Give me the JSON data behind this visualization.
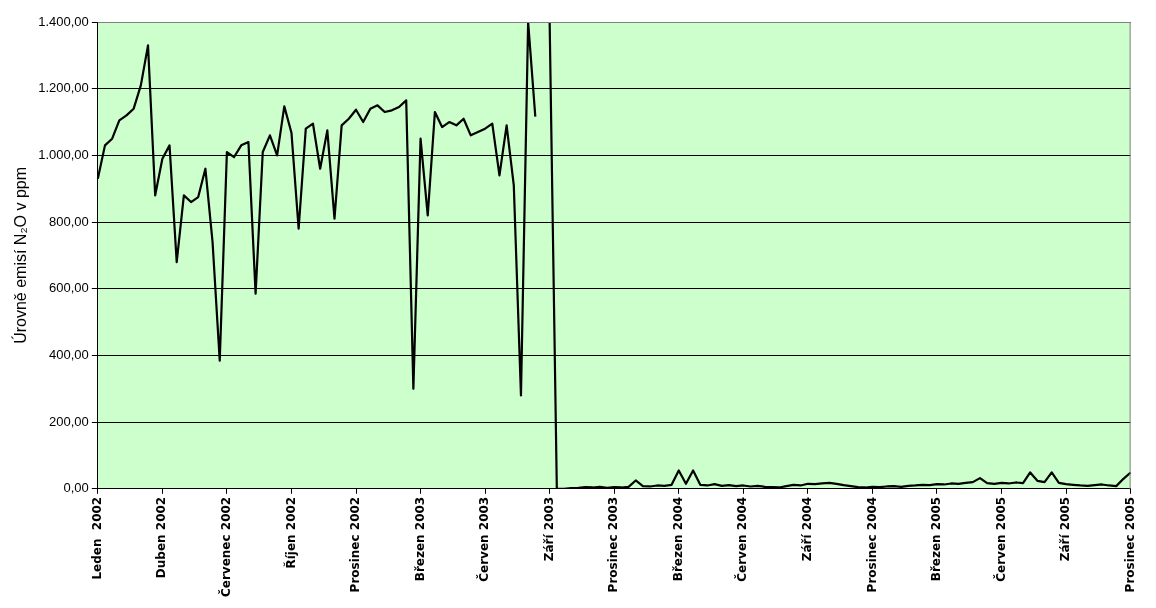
{
  "chart_data": {
    "type": "line",
    "ylabel": "Úrovně emisí N₂O v ppm",
    "categories": [
      "Leden  2002",
      null,
      null,
      null,
      null,
      null,
      null,
      null,
      null,
      "Duben 2002",
      null,
      null,
      null,
      null,
      null,
      null,
      null,
      null,
      "Červenec 2002",
      null,
      null,
      null,
      null,
      null,
      null,
      null,
      null,
      "Říjen 2002",
      null,
      null,
      null,
      null,
      null,
      null,
      null,
      null,
      "Prosinec 2002",
      null,
      null,
      null,
      null,
      null,
      null,
      null,
      null,
      "Březen 2003",
      null,
      null,
      null,
      null,
      null,
      null,
      null,
      null,
      "Červen 2003",
      null,
      null,
      null,
      null,
      null,
      null,
      null,
      null,
      "Září 2003",
      null,
      null,
      null,
      null,
      null,
      null,
      null,
      null,
      "Prosinec 2003",
      null,
      null,
      null,
      null,
      null,
      null,
      null,
      null,
      "Březen 2004",
      null,
      null,
      null,
      null,
      null,
      null,
      null,
      null,
      "Červen 2004",
      null,
      null,
      null,
      null,
      null,
      null,
      null,
      null,
      "Září 2004",
      null,
      null,
      null,
      null,
      null,
      null,
      null,
      null,
      "Prosinec 2004",
      null,
      null,
      null,
      null,
      null,
      null,
      null,
      null,
      "Březen 2005",
      null,
      null,
      null,
      null,
      null,
      null,
      null,
      null,
      "Červen 2005",
      null,
      null,
      null,
      null,
      null,
      null,
      null,
      null,
      "Září 2005",
      null,
      null,
      null,
      null,
      null,
      null,
      null,
      null,
      "Prosinec 2005"
    ],
    "series": [
      {
        "color": "#000000",
        "values": [
          930,
          1030,
          1050,
          1105,
          1120,
          1140,
          1210,
          1330,
          880,
          990,
          1030,
          680,
          880,
          860,
          875,
          960,
          740,
          384,
          1010,
          995,
          1030,
          1040,
          585,
          1010,
          1060,
          1000,
          1147,
          1068,
          780,
          1080,
          1095,
          960,
          1075,
          810,
          1090,
          1110,
          1137,
          1100,
          1140,
          1150,
          1130,
          1135,
          1145,
          1165,
          300,
          1050,
          820,
          1130,
          1085,
          1100,
          1090,
          1110,
          1060,
          1070,
          1080,
          1095,
          940,
          1090,
          910,
          280,
          1400,
          1116,
          null,
          1400,
          0,
          0,
          2,
          3,
          5,
          4,
          6,
          3,
          5,
          4,
          6,
          25,
          8,
          7,
          10,
          9,
          12,
          55,
          15,
          55,
          12,
          10,
          14,
          9,
          11,
          8,
          10,
          7,
          9,
          6,
          5,
          4,
          8,
          12,
          10,
          15,
          14,
          16,
          18,
          15,
          11,
          8,
          5,
          4,
          6,
          5,
          7,
          8,
          6,
          9,
          10,
          12,
          11,
          14,
          13,
          16,
          15,
          18,
          20,
          32,
          17,
          15,
          18,
          16,
          19,
          17,
          49,
          24,
          20,
          49,
          18,
          14,
          12,
          10,
          9,
          11,
          13,
          10,
          8,
          30,
          49
        ]
      }
    ],
    "ylim": [
      0,
      1400
    ],
    "yticks": [
      {
        "value": 0,
        "label": "0,00"
      },
      {
        "value": 200,
        "label": "200,00"
      },
      {
        "value": 400,
        "label": "400,00"
      },
      {
        "value": 600,
        "label": "600,00"
      },
      {
        "value": 800,
        "label": "800,00"
      },
      {
        "value": 1000,
        "label": "1.000,00"
      },
      {
        "value": 1200,
        "label": "1.200,00"
      },
      {
        "value": 1400,
        "label": "1.400,00"
      }
    ],
    "grid": "y",
    "legend": false,
    "marker": "none",
    "line_style": "solid"
  }
}
